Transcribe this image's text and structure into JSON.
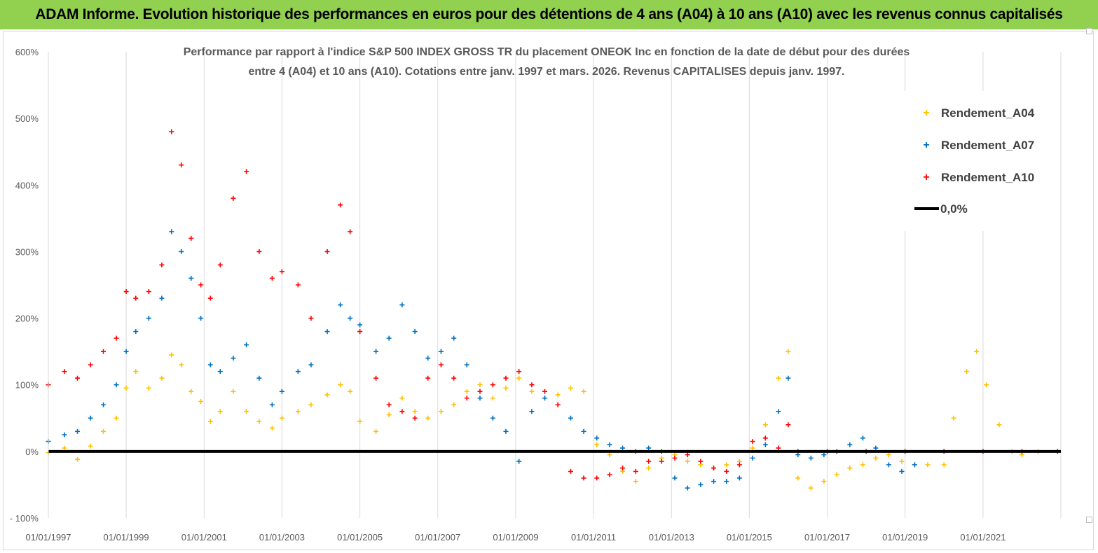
{
  "header": {
    "title": "ADAM Informe. Evolution historique des performances en euros pour des détentions de 4 ans (A04) à 10 ans (A10) avec les revenus connus capitalisés"
  },
  "chart_data": {
    "type": "scatter",
    "title_lines": [
      "Performance par rapport à l'indice S&P 500 INDEX GROSS TR  du placement ONEOK Inc en fonction de la date de début pour des durées",
      "entre 4 (A04) et 10 ans (A10). Cotations entre janv. 1997 et mars. 2026. Revenus CAPITALISES depuis janv. 1997."
    ],
    "xlabel": "",
    "ylabel": "",
    "x_range": [
      "1997-01-01",
      "2023-01-01"
    ],
    "ylim": [
      -100,
      600
    ],
    "y_ticks": [
      "- 100%",
      "0%",
      "100%",
      "200%",
      "300%",
      "400%",
      "500%",
      "600%"
    ],
    "x_ticks": [
      "01/01/1997",
      "01/01/1999",
      "01/01/2001",
      "01/01/2003",
      "01/01/2005",
      "01/01/2007",
      "01/01/2009",
      "01/01/2011",
      "01/01/2013",
      "01/01/2015",
      "01/01/2017",
      "01/01/2019",
      "01/01/2021"
    ],
    "grid": "vertical",
    "legend_position": "right",
    "reference_line": {
      "name": "0,0%",
      "y": 0,
      "color": "#000000"
    },
    "series": [
      {
        "name": "Rendement_A04",
        "color": "#ffc000",
        "points": [
          [
            "1997-01",
            -2
          ],
          [
            "1997-06",
            5
          ],
          [
            "1997-10",
            -12
          ],
          [
            "1998-02",
            8
          ],
          [
            "1998-06",
            30
          ],
          [
            "1998-10",
            50
          ],
          [
            "1999-01",
            95
          ],
          [
            "1999-04",
            120
          ],
          [
            "1999-08",
            95
          ],
          [
            "1999-12",
            110
          ],
          [
            "2000-03",
            145
          ],
          [
            "2000-06",
            130
          ],
          [
            "2000-09",
            90
          ],
          [
            "2000-12",
            75
          ],
          [
            "2001-03",
            45
          ],
          [
            "2001-06",
            60
          ],
          [
            "2001-10",
            90
          ],
          [
            "2002-02",
            60
          ],
          [
            "2002-06",
            45
          ],
          [
            "2002-10",
            35
          ],
          [
            "2003-01",
            50
          ],
          [
            "2003-06",
            60
          ],
          [
            "2003-10",
            70
          ],
          [
            "2004-03",
            85
          ],
          [
            "2004-07",
            100
          ],
          [
            "2004-10",
            90
          ],
          [
            "2005-01",
            45
          ],
          [
            "2005-06",
            30
          ],
          [
            "2005-10",
            55
          ],
          [
            "2006-02",
            80
          ],
          [
            "2006-06",
            60
          ],
          [
            "2006-10",
            50
          ],
          [
            "2007-02",
            60
          ],
          [
            "2007-06",
            70
          ],
          [
            "2007-10",
            90
          ],
          [
            "2008-02",
            100
          ],
          [
            "2008-06",
            80
          ],
          [
            "2008-10",
            95
          ],
          [
            "2009-02",
            110
          ],
          [
            "2009-06",
            90
          ],
          [
            "2009-10",
            80
          ],
          [
            "2010-02",
            85
          ],
          [
            "2010-06",
            95
          ],
          [
            "2010-10",
            90
          ],
          [
            "2011-02",
            10
          ],
          [
            "2011-06",
            -5
          ],
          [
            "2011-10",
            -30
          ],
          [
            "2012-02",
            -45
          ],
          [
            "2012-06",
            -25
          ],
          [
            "2012-10",
            -10
          ],
          [
            "2013-02",
            -5
          ],
          [
            "2013-06",
            -15
          ],
          [
            "2013-10",
            -20
          ],
          [
            "2014-02",
            -25
          ],
          [
            "2014-06",
            -20
          ],
          [
            "2014-10",
            -15
          ],
          [
            "2015-02",
            5
          ],
          [
            "2015-06",
            40
          ],
          [
            "2015-10",
            110
          ],
          [
            "2016-01",
            150
          ],
          [
            "2016-04",
            -40
          ],
          [
            "2016-08",
            -55
          ],
          [
            "2016-12",
            -45
          ],
          [
            "2017-04",
            -35
          ],
          [
            "2017-08",
            -25
          ],
          [
            "2017-12",
            -20
          ],
          [
            "2018-04",
            -10
          ],
          [
            "2018-08",
            -5
          ],
          [
            "2018-12",
            -15
          ],
          [
            "2019-04",
            -20
          ],
          [
            "2019-08",
            -20
          ],
          [
            "2020-01",
            -20
          ],
          [
            "2020-04",
            50
          ],
          [
            "2020-08",
            120
          ],
          [
            "2020-11",
            150
          ],
          [
            "2021-02",
            100
          ],
          [
            "2021-06",
            40
          ],
          [
            "2021-10",
            0
          ],
          [
            "2022-01",
            -5
          ],
          [
            "2022-06",
            0
          ],
          [
            "2022-12",
            0
          ]
        ]
      },
      {
        "name": "Rendement_A07",
        "color": "#0070c0",
        "points": [
          [
            "1997-01",
            15
          ],
          [
            "1997-06",
            25
          ],
          [
            "1997-10",
            30
          ],
          [
            "1998-02",
            50
          ],
          [
            "1998-06",
            70
          ],
          [
            "1998-10",
            100
          ],
          [
            "1999-01",
            150
          ],
          [
            "1999-04",
            180
          ],
          [
            "1999-08",
            200
          ],
          [
            "1999-12",
            230
          ],
          [
            "2000-03",
            330
          ],
          [
            "2000-06",
            300
          ],
          [
            "2000-09",
            260
          ],
          [
            "2000-12",
            200
          ],
          [
            "2001-03",
            130
          ],
          [
            "2001-06",
            120
          ],
          [
            "2001-10",
            140
          ],
          [
            "2002-02",
            160
          ],
          [
            "2002-06",
            110
          ],
          [
            "2002-10",
            70
          ],
          [
            "2003-01",
            90
          ],
          [
            "2003-06",
            120
          ],
          [
            "2003-10",
            130
          ],
          [
            "2004-03",
            180
          ],
          [
            "2004-07",
            220
          ],
          [
            "2004-10",
            200
          ],
          [
            "2005-01",
            190
          ],
          [
            "2005-06",
            150
          ],
          [
            "2005-10",
            170
          ],
          [
            "2006-02",
            220
          ],
          [
            "2006-06",
            180
          ],
          [
            "2006-10",
            140
          ],
          [
            "2007-02",
            150
          ],
          [
            "2007-06",
            170
          ],
          [
            "2007-10",
            130
          ],
          [
            "2008-02",
            80
          ],
          [
            "2008-06",
            50
          ],
          [
            "2008-10",
            30
          ],
          [
            "2009-02",
            -15
          ],
          [
            "2009-06",
            60
          ],
          [
            "2009-10",
            80
          ],
          [
            "2010-02",
            70
          ],
          [
            "2010-06",
            50
          ],
          [
            "2010-10",
            30
          ],
          [
            "2011-02",
            20
          ],
          [
            "2011-06",
            10
          ],
          [
            "2011-10",
            5
          ],
          [
            "2012-02",
            0
          ],
          [
            "2012-06",
            5
          ],
          [
            "2012-10",
            0
          ],
          [
            "2013-02",
            -40
          ],
          [
            "2013-06",
            -55
          ],
          [
            "2013-10",
            -50
          ],
          [
            "2014-02",
            -45
          ],
          [
            "2014-06",
            -45
          ],
          [
            "2014-10",
            -40
          ],
          [
            "2015-02",
            -10
          ],
          [
            "2015-06",
            10
          ],
          [
            "2015-10",
            60
          ],
          [
            "2016-01",
            110
          ],
          [
            "2016-04",
            -5
          ],
          [
            "2016-08",
            -10
          ],
          [
            "2016-12",
            -5
          ],
          [
            "2017-04",
            0
          ],
          [
            "2017-08",
            10
          ],
          [
            "2017-12",
            20
          ],
          [
            "2018-04",
            5
          ],
          [
            "2018-08",
            -20
          ],
          [
            "2018-12",
            -30
          ],
          [
            "2019-04",
            -20
          ]
        ]
      },
      {
        "name": "Rendement_A10",
        "color": "#ff0000",
        "points": [
          [
            "1997-01",
            100
          ],
          [
            "1997-06",
            120
          ],
          [
            "1997-10",
            110
          ],
          [
            "1998-02",
            130
          ],
          [
            "1998-06",
            150
          ],
          [
            "1998-10",
            170
          ],
          [
            "1999-01",
            240
          ],
          [
            "1999-04",
            230
          ],
          [
            "1999-08",
            240
          ],
          [
            "1999-12",
            280
          ],
          [
            "2000-03",
            480
          ],
          [
            "2000-06",
            430
          ],
          [
            "2000-09",
            320
          ],
          [
            "2000-12",
            250
          ],
          [
            "2001-03",
            230
          ],
          [
            "2001-06",
            280
          ],
          [
            "2001-10",
            380
          ],
          [
            "2002-02",
            420
          ],
          [
            "2002-06",
            300
          ],
          [
            "2002-10",
            260
          ],
          [
            "2003-01",
            270
          ],
          [
            "2003-06",
            250
          ],
          [
            "2003-10",
            200
          ],
          [
            "2004-03",
            300
          ],
          [
            "2004-07",
            370
          ],
          [
            "2004-10",
            330
          ],
          [
            "2005-01",
            180
          ],
          [
            "2005-06",
            110
          ],
          [
            "2005-10",
            70
          ],
          [
            "2006-02",
            60
          ],
          [
            "2006-06",
            50
          ],
          [
            "2006-10",
            110
          ],
          [
            "2007-02",
            130
          ],
          [
            "2007-06",
            110
          ],
          [
            "2007-10",
            80
          ],
          [
            "2008-02",
            90
          ],
          [
            "2008-06",
            100
          ],
          [
            "2008-10",
            110
          ],
          [
            "2009-02",
            120
          ],
          [
            "2009-06",
            100
          ],
          [
            "2009-10",
            90
          ],
          [
            "2010-02",
            70
          ],
          [
            "2010-06",
            -30
          ],
          [
            "2010-10",
            -40
          ],
          [
            "2011-02",
            -40
          ],
          [
            "2011-06",
            -35
          ],
          [
            "2011-10",
            -25
          ],
          [
            "2012-02",
            -30
          ],
          [
            "2012-06",
            -15
          ],
          [
            "2012-10",
            -15
          ],
          [
            "2013-02",
            -10
          ],
          [
            "2013-06",
            -5
          ],
          [
            "2013-10",
            -15
          ],
          [
            "2014-02",
            -25
          ],
          [
            "2014-06",
            -30
          ],
          [
            "2014-10",
            -20
          ],
          [
            "2015-02",
            15
          ],
          [
            "2015-06",
            20
          ],
          [
            "2015-10",
            5
          ],
          [
            "2016-01",
            40
          ],
          [
            "2016-04",
            0
          ],
          [
            "2017-01",
            0
          ],
          [
            "2018-01",
            0
          ],
          [
            "2019-01",
            0
          ],
          [
            "2020-01",
            0
          ],
          [
            "2021-01",
            0
          ],
          [
            "2022-01",
            0
          ],
          [
            "2022-12",
            0
          ]
        ]
      }
    ]
  }
}
